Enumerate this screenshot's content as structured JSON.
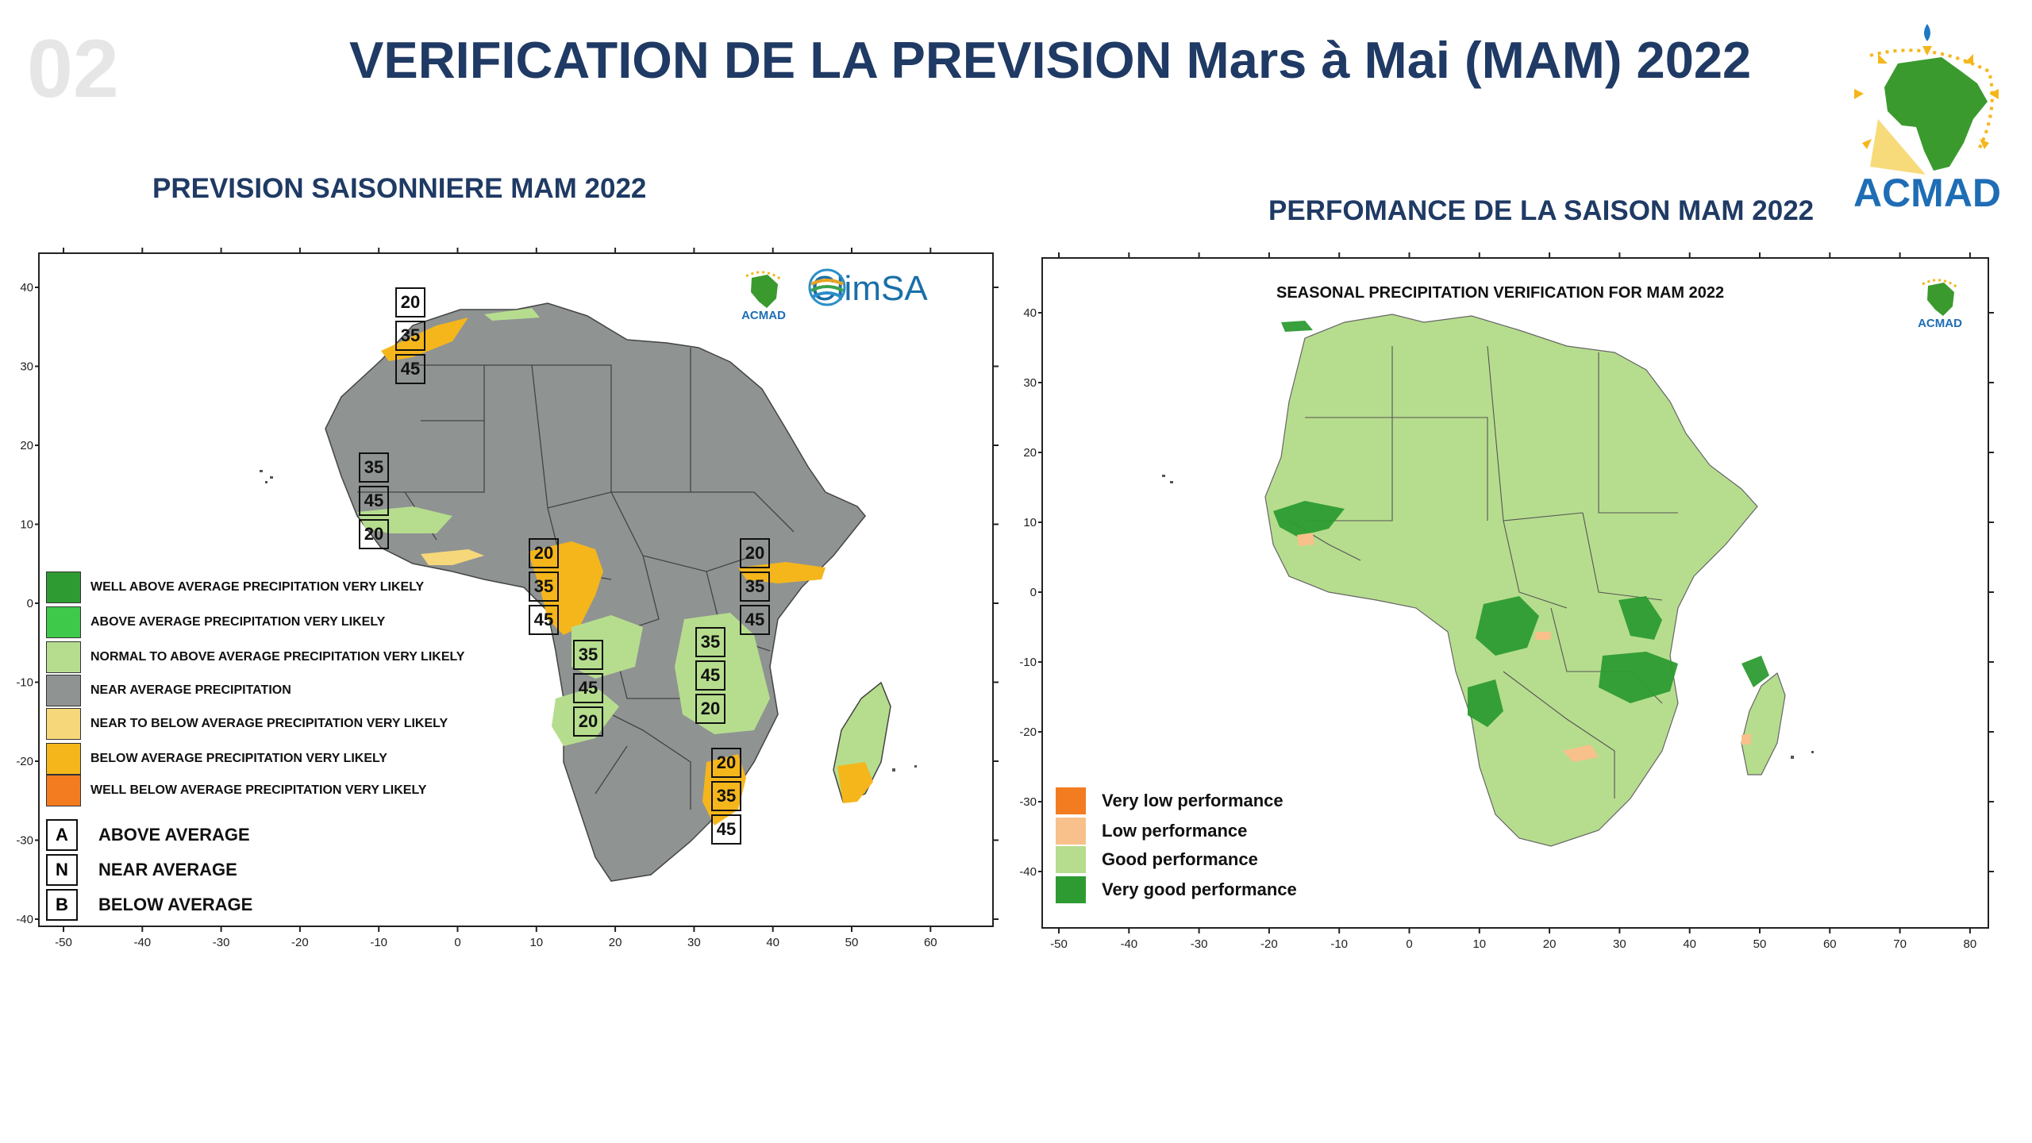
{
  "header": {
    "slide_number": "02",
    "title": "VERIFICATION DE LA PREVISION Mars à Mai (MAM)  2022",
    "logo_text": "ACMAD"
  },
  "left_panel": {
    "heading": "PREVISION SAISONNIERE MAM 2022",
    "climsa_text": "ClimSA",
    "acmad_small": "ACMAD",
    "x_ticks": [
      "-50",
      "-40",
      "-30",
      "-20",
      "-10",
      "0",
      "10",
      "20",
      "30",
      "40",
      "50",
      "60"
    ],
    "y_ticks": [
      "40",
      "30",
      "20",
      "10",
      "0",
      "-10",
      "-20",
      "-30",
      "-40"
    ],
    "legend": [
      {
        "label": "WELL ABOVE AVERAGE PRECIPITATION VERY LIKELY",
        "color": "#2e9b32"
      },
      {
        "label": "ABOVE AVERAGE PRECIPITATION VERY LIKELY",
        "color": "#3ec94a"
      },
      {
        "label": "NORMAL TO ABOVE AVERAGE PRECIPITATION VERY LIKELY",
        "color": "#b6dd8e"
      },
      {
        "label": "NEAR AVERAGE PRECIPITATION",
        "color": "#8f9392"
      },
      {
        "label": "NEAR  TO BELOW AVERAGE PRECIPITATION VERY LIKELY",
        "color": "#f6d77a"
      },
      {
        "label": "BELOW  AVERAGE PRECIPITATION VERY LIKELY",
        "color": "#f5b61c"
      },
      {
        "label": "WELL BELOW AVERAGE PRECIPITATION VERY LIKELY",
        "color": "#f47c20"
      }
    ],
    "abn": [
      {
        "letter": "A",
        "label": "ABOVE AVERAGE"
      },
      {
        "letter": "N",
        "label": "NEAR AVERAGE"
      },
      {
        "letter": "B",
        "label": "BELOW AVERAGE"
      }
    ],
    "prob_boxes": [
      {
        "values": [
          "20",
          "35",
          "45"
        ]
      },
      {
        "values": [
          "35",
          "45",
          "20"
        ]
      },
      {
        "values": [
          "20",
          "35",
          "45"
        ]
      },
      {
        "values": [
          "20",
          "35",
          "45"
        ]
      },
      {
        "values": [
          "35",
          "45",
          "20"
        ]
      },
      {
        "values": [
          "35",
          "45",
          "20"
        ]
      },
      {
        "values": [
          "20",
          "35",
          "45"
        ]
      }
    ]
  },
  "right_panel": {
    "heading": "PERFOMANCE DE LA SAISON MAM 2022",
    "map_title": "SEASONAL PRECIPITATION VERIFICATION FOR MAM 2022",
    "acmad_small": "ACMAD",
    "x_ticks": [
      "-50",
      "-40",
      "-30",
      "-20",
      "-10",
      "0",
      "10",
      "20",
      "30",
      "40",
      "50",
      "60",
      "70",
      "80"
    ],
    "y_ticks": [
      "40",
      "30",
      "20",
      "10",
      "0",
      "-10",
      "-20",
      "-30",
      "-40"
    ],
    "legend": [
      {
        "label": "Very low performance",
        "color": "#f47c20"
      },
      {
        "label": "Low performance",
        "color": "#f8c08a"
      },
      {
        "label": "Good performance",
        "color": "#b6dd8e"
      },
      {
        "label": "Very good performance",
        "color": "#2e9b32"
      }
    ]
  },
  "colors": {
    "title_blue": "#1f3a64",
    "land_gray": "#8f9392",
    "good_green": "#b6dd8e",
    "very_good_green": "#2e9b32",
    "below_orange": "#f5b61c",
    "near_below": "#f6d77a"
  }
}
